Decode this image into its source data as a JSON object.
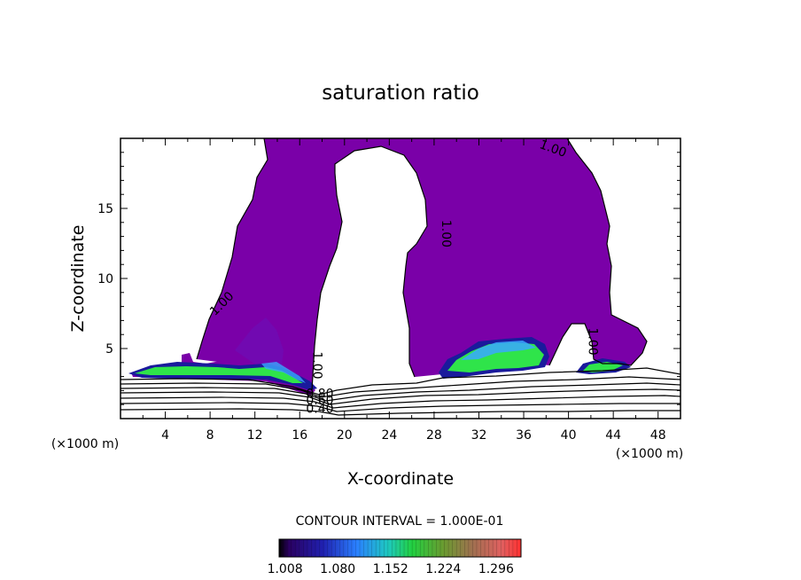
{
  "chart_data": {
    "type": "heatmap",
    "title": "saturation ratio",
    "xlabel": "X-coordinate",
    "ylabel": "Z-coordinate",
    "x_unit": "(×1000 m)",
    "xlim": [
      0,
      50
    ],
    "ylim": [
      0,
      20
    ],
    "x_ticks": [
      4,
      8,
      12,
      16,
      20,
      24,
      28,
      32,
      36,
      40,
      44,
      48
    ],
    "y_ticks": [
      5,
      10,
      15
    ],
    "contour_interval_label": "CONTOUR INTERVAL = 1.000E-01",
    "colorbar": {
      "ticks": [
        "1.008",
        "1.080",
        "1.152",
        "1.224",
        "1.296"
      ],
      "range": [
        1.0,
        1.33
      ]
    },
    "contour_labels": [
      {
        "text": "1.00",
        "x": 38.5,
        "z": 19.0,
        "angle": 20
      },
      {
        "text": "1.00",
        "x": 28.7,
        "z": 13.2,
        "angle": 90
      },
      {
        "text": "1.00",
        "x": 9.3,
        "z": 8.0,
        "angle": -45
      },
      {
        "text": "1.00",
        "x": 41.8,
        "z": 5.5,
        "angle": 90
      },
      {
        "text": "1.00",
        "x": 17.2,
        "z": 3.8,
        "angle": 90
      },
      {
        "text": "0.80",
        "x": 17.8,
        "z": 1.5,
        "angle": 0
      },
      {
        "text": "0.60",
        "x": 17.8,
        "z": 1.0,
        "angle": 0
      },
      {
        "text": "0.40",
        "x": 17.8,
        "z": 0.4,
        "angle": 0
      }
    ],
    "colors": {
      "saturated": "#7a00a8",
      "moderate": "#2fe44a",
      "light": "#3aa8ff",
      "dark": "#1a1a9c"
    }
  }
}
